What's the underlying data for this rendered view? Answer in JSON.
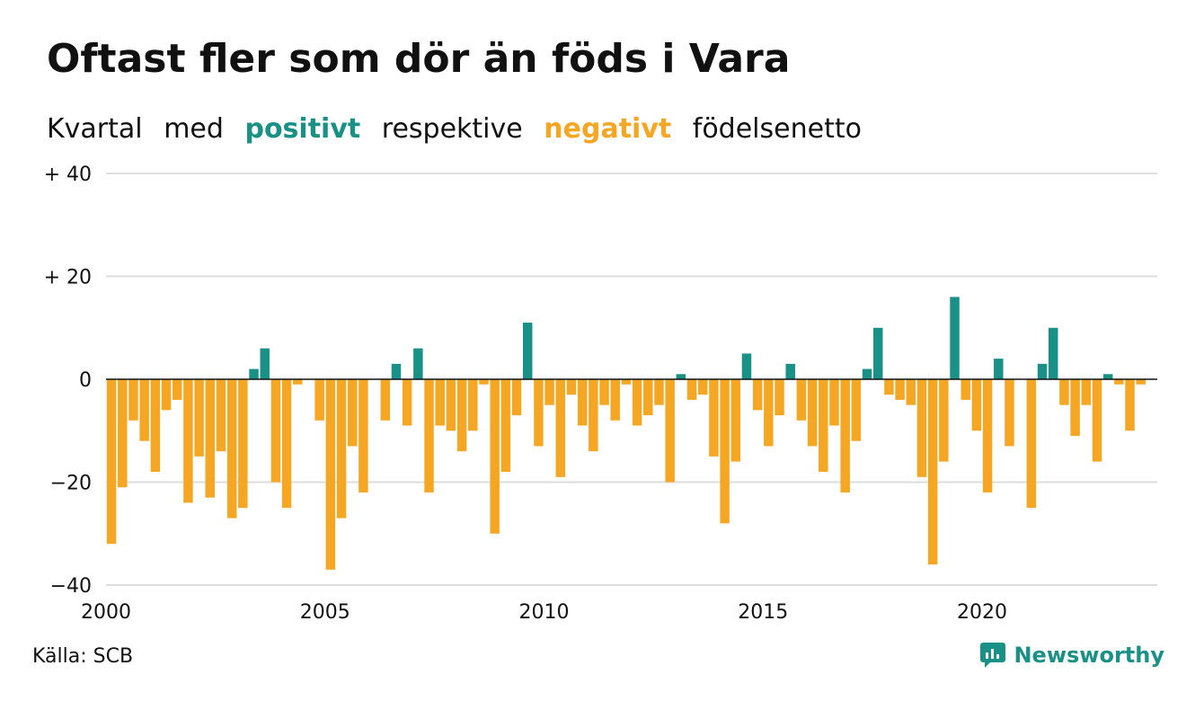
{
  "header": {
    "title": "Oftast fler som dör än föds i Vara",
    "subtitle": {
      "w1": "Kvartal",
      "w2": "med",
      "positive": "positivt",
      "w3": "respektive",
      "negative": "negativt",
      "w4": "födelsenetto"
    }
  },
  "footer": {
    "source": "Källa: SCB",
    "brand": "Newsworthy"
  },
  "colors": {
    "positive": "#1a9186",
    "negative": "#f5a623",
    "grid": "#dddddd",
    "zero_line": "#111111"
  },
  "chart_data": {
    "type": "bar",
    "ylim": [
      -40,
      40
    ],
    "y_ticks": [
      40,
      20,
      0,
      -20,
      -40
    ],
    "y_tick_labels": [
      "+ 40",
      "+ 20",
      "0",
      "−20",
      "−40"
    ],
    "x_tick_labels": [
      "2000",
      "2005",
      "2010",
      "2015",
      "2020"
    ],
    "grid": true,
    "start_year": 2000,
    "values": [
      -32,
      -21,
      -8,
      -12,
      -18,
      -6,
      -4,
      -24,
      -15,
      -23,
      -14,
      -27,
      -25,
      2,
      6,
      -20,
      -25,
      -1,
      0,
      -8,
      -37,
      -27,
      -13,
      -22,
      0,
      -8,
      3,
      -9,
      6,
      -22,
      -9,
      -10,
      -14,
      -10,
      -1,
      -30,
      -18,
      -7,
      11,
      -13,
      -5,
      -19,
      -3,
      -9,
      -14,
      -5,
      -8,
      -1,
      -9,
      -7,
      -5,
      -20,
      1,
      -4,
      -3,
      -15,
      -28,
      -16,
      5,
      -6,
      -13,
      -7,
      3,
      -8,
      -13,
      -18,
      -9,
      -22,
      -12,
      2,
      10,
      -3,
      -4,
      -5,
      -19,
      -36,
      -16,
      16,
      -4,
      -10,
      -22,
      4,
      -13,
      0,
      -25,
      3,
      10,
      -5,
      -11,
      -5,
      -16,
      1,
      -1,
      -10,
      -1
    ]
  }
}
